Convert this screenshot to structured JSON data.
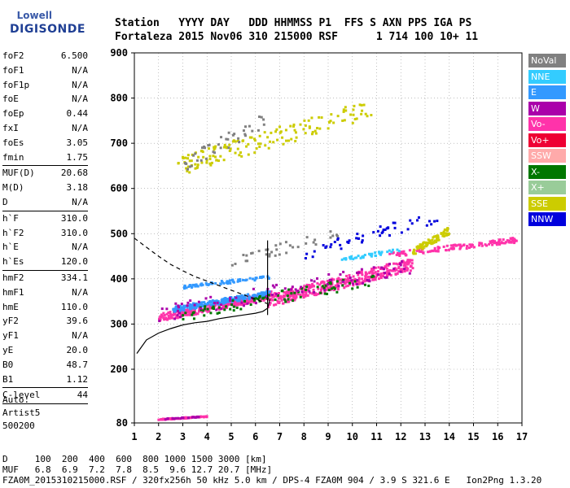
{
  "logo": {
    "line1": "Lowell",
    "line2": "DIGISONDE"
  },
  "header": {
    "labels": [
      "Station",
      "YYYY",
      "DAY",
      "DDD",
      "HHMMSS",
      "P1",
      "FFS",
      "S",
      "AXN",
      "PPS",
      "IGA",
      "PS"
    ],
    "values": [
      "Fortaleza",
      "2015",
      "Nov06",
      "310",
      "215000",
      "RSF",
      "1",
      "714",
      "100",
      "10+",
      "11"
    ],
    "line1": "Station   YYYY DAY   DDD HHMMSS P1  FFS S AXN PPS IGA PS",
    "line2": "Fortaleza 2015 Nov06 310 215000 RSF      1 714 100 10+ 11"
  },
  "params": {
    "group1": [
      {
        "label": "foF2",
        "value": "6.500"
      },
      {
        "label": "foF1",
        "value": "N/A"
      },
      {
        "label": "foF1p",
        "value": "N/A"
      },
      {
        "label": "foE",
        "value": "N/A"
      },
      {
        "label": "foEp",
        "value": "0.44"
      },
      {
        "label": "fxI",
        "value": "N/A"
      },
      {
        "label": "foEs",
        "value": "3.05"
      },
      {
        "label": "fmin",
        "value": "1.75"
      }
    ],
    "group2": [
      {
        "label": "MUF(D)",
        "value": "20.68"
      },
      {
        "label": "M(D)",
        "value": "3.18"
      },
      {
        "label": "D",
        "value": "N/A"
      }
    ],
    "group3": [
      {
        "label": "h`F",
        "value": "310.0"
      },
      {
        "label": "h`F2",
        "value": "310.0"
      },
      {
        "label": "h`E",
        "value": "N/A"
      },
      {
        "label": "h`Es",
        "value": "120.0"
      }
    ],
    "group4": [
      {
        "label": "hmF2",
        "value": "334.1"
      },
      {
        "label": "hmF1",
        "value": "N/A"
      },
      {
        "label": "hmE",
        "value": "110.0"
      },
      {
        "label": "yF2",
        "value": "39.6"
      },
      {
        "label": "yF1",
        "value": "N/A"
      },
      {
        "label": "yE",
        "value": "20.0"
      },
      {
        "label": "B0",
        "value": "48.7"
      },
      {
        "label": "B1",
        "value": "1.12"
      }
    ],
    "group5": [
      {
        "label": "C-level",
        "value": "44"
      }
    ]
  },
  "auto": {
    "line1": "Auto:",
    "line2": "Artist5",
    "line3": "500200"
  },
  "legend": [
    {
      "label": "NoVal",
      "color": "#808080"
    },
    {
      "label": "NNE",
      "color": "#33ccff"
    },
    {
      "label": "E",
      "color": "#3399ff"
    },
    {
      "label": "W",
      "color": "#aa00aa"
    },
    {
      "label": "Vo-",
      "color": "#ff33aa"
    },
    {
      "label": "Vo+",
      "color": "#ee0033"
    },
    {
      "label": "SSW",
      "color": "#ffaaaa"
    },
    {
      "label": "X-",
      "color": "#007700"
    },
    {
      "label": "X+",
      "color": "#99cc99"
    },
    {
      "label": "SSE",
      "color": "#cccc00"
    },
    {
      "label": "NNW",
      "color": "#0000dd"
    }
  ],
  "footer": {
    "line1": "D     100  200  400  600  800 1000 1500 3000 [km]",
    "line2": "MUF   6.8  6.9  7.2  7.8  8.5  9.6 12.7 20.7 [MHz]",
    "line3": "FZA0M_2015310215000.RSF / 320fx256h 50 kHz 5.0 km / DPS-4 FZA0M 904 / 3.9 S 321.6 E   Ion2Png 1.3.20"
  },
  "chart_data": {
    "type": "scatter",
    "xlim": [
      1,
      17
    ],
    "ylim": [
      80,
      900
    ],
    "xticks": [
      1,
      2,
      3,
      4,
      5,
      6,
      7,
      8,
      9,
      10,
      11,
      12,
      13,
      14,
      15,
      16,
      17
    ],
    "yticks": [
      80,
      200,
      300,
      400,
      500,
      600,
      700,
      800,
      900
    ],
    "grid": true,
    "legend_position": "right",
    "profile_curve": {
      "x": [
        1.1,
        1.5,
        2.0,
        2.5,
        3.0,
        3.5,
        4.0,
        4.5,
        5.0,
        5.5,
        6.0,
        6.3,
        6.5,
        6.6
      ],
      "y": [
        235,
        265,
        280,
        290,
        298,
        303,
        306,
        312,
        316,
        320,
        324,
        328,
        335,
        355
      ]
    },
    "profile_vertical": {
      "x": [
        6.5,
        6.5
      ],
      "y": [
        320,
        485
      ]
    },
    "dashed_curve": {
      "x": [
        1.0,
        1.5,
        2.0,
        2.5,
        3.0,
        3.5,
        4.0,
        4.5,
        5.0,
        5.5,
        6.0,
        6.5
      ],
      "y": [
        490,
        470,
        450,
        432,
        418,
        405,
        395,
        385,
        375,
        365,
        355,
        345
      ]
    },
    "clusters": [
      {
        "series": "Vo-",
        "x0": 2.0,
        "x1": 6.7,
        "y0": 310,
        "y1": 378,
        "n": 320
      },
      {
        "series": "E",
        "x0": 2.6,
        "x1": 6.6,
        "y0": 330,
        "y1": 378,
        "n": 220
      },
      {
        "series": "Vo-",
        "x0": 6.5,
        "x1": 12.5,
        "y0": 345,
        "y1": 455,
        "n": 360
      },
      {
        "series": "E",
        "x0": 3.0,
        "x1": 6.6,
        "y0": 380,
        "y1": 410,
        "n": 80
      },
      {
        "series": "X-",
        "x0": 3.0,
        "x1": 11.0,
        "y0": 315,
        "y1": 420,
        "n": 90
      },
      {
        "series": "W",
        "x0": 2.0,
        "x1": 12.5,
        "y0": 315,
        "y1": 455,
        "n": 90
      },
      {
        "series": "Vo-",
        "x0": 11.5,
        "x1": 16.8,
        "y0": 450,
        "y1": 495,
        "n": 130
      },
      {
        "series": "SSE",
        "x0": 12.5,
        "x1": 14.0,
        "y0": 455,
        "y1": 520,
        "n": 90
      },
      {
        "series": "NNW",
        "x0": 8.0,
        "x1": 13.5,
        "y0": 450,
        "y1": 560,
        "n": 50
      },
      {
        "series": "NNE",
        "x0": 9.5,
        "x1": 12.0,
        "y0": 440,
        "y1": 470,
        "n": 40
      },
      {
        "series": "NoVal",
        "x0": 4.0,
        "x1": 9.5,
        "y0": 420,
        "y1": 520,
        "n": 35
      },
      {
        "series": "SSE",
        "x0": 2.8,
        "x1": 10.8,
        "y0": 640,
        "y1": 810,
        "n": 150
      },
      {
        "series": "NoVal",
        "x0": 2.8,
        "x1": 6.5,
        "y0": 640,
        "y1": 780,
        "n": 40
      },
      {
        "series": "Vo-",
        "x0": 2.0,
        "x1": 4.0,
        "y0": 87,
        "y1": 96,
        "n": 60
      },
      {
        "series": "W",
        "x0": 2.2,
        "x1": 3.7,
        "y0": 88,
        "y1": 95,
        "n": 25
      }
    ]
  }
}
